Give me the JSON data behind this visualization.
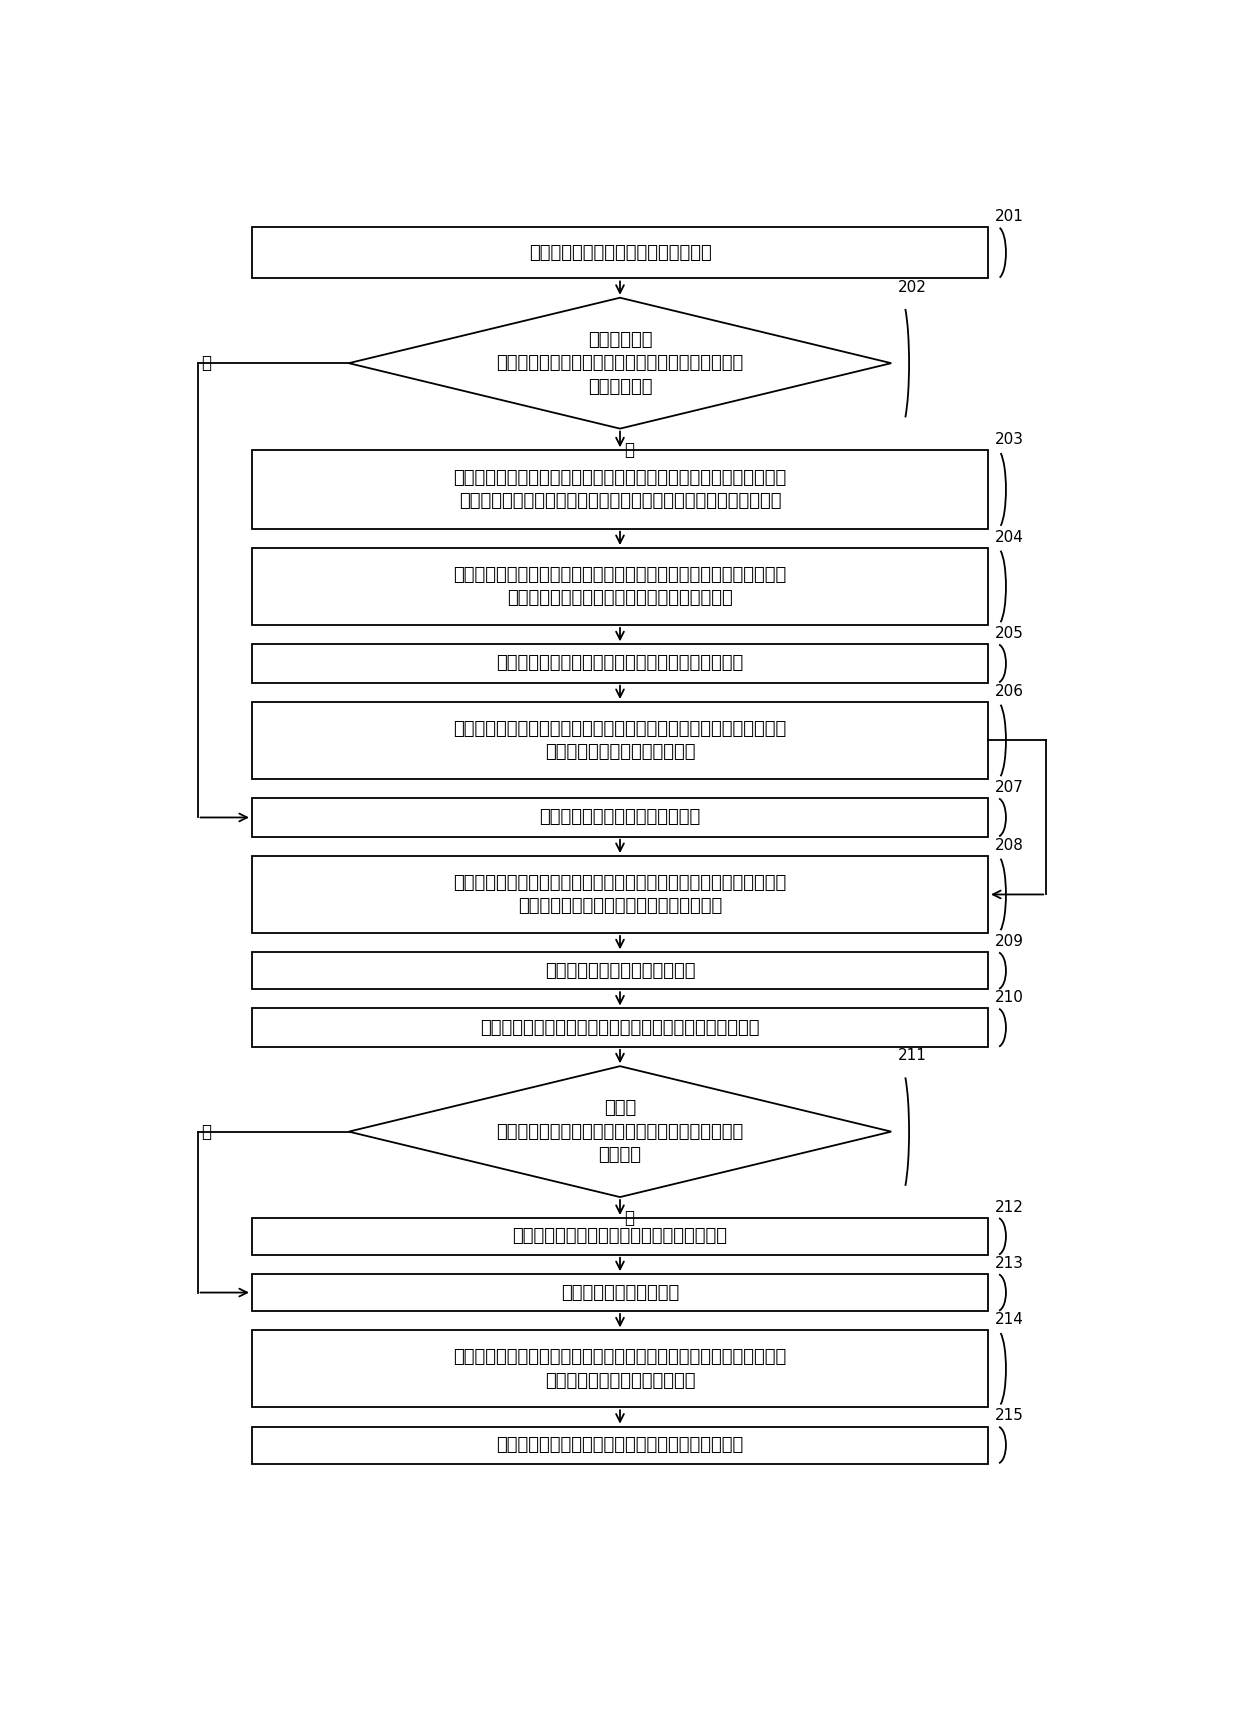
{
  "background_color": "#ffffff",
  "nodes": [
    {
      "id": "201",
      "type": "rect",
      "label": "接收至少一个设备发来的第一状态信息",
      "num": "201",
      "lines": 1
    },
    {
      "id": "202",
      "type": "diamond",
      "label": "针对每一个当\n前设备，确定缓存的数据中是否存在与当前设备相关\n联的控制命令",
      "num": "202",
      "lines": 3
    },
    {
      "id": "203",
      "type": "rect",
      "label": "根据当前设备对应的设备类型，从预先存储的至少一种解析文件中确定\n目标解析文件，其中，每一种解析文件与至少一种类型的设备相对应",
      "num": "203",
      "lines": 2
    },
    {
      "id": "204",
      "type": "rect",
      "label": "利用目标解析文件将控制命令转换为与当前设备对应的数据类型相匹配\n的控制命令，将转换后的控制命令作为控制命令",
      "num": "204",
      "lines": 2
    },
    {
      "id": "205",
      "type": "rect",
      "label": "将控制命令发送给当前设备，并删除缓存的控制命令",
      "num": "205",
      "lines": 1
    },
    {
      "id": "206",
      "type": "rect",
      "label": "当接收到当前设备按照控制命令执行操作后返回的第二状态信息时，将\n第二状态信息作为当前状态信息",
      "num": "206",
      "lines": 2
    },
    {
      "id": "207",
      "type": "rect",
      "label": "将第一状态信息作为当前状态信息",
      "num": "207",
      "lines": 1
    },
    {
      "id": "208",
      "type": "rect",
      "label": "利用目标解析文件将当前状态信息转换为预设格式的当前状态信息，并\n将转换后的当前状态信息作为当前状态信息",
      "num": "208",
      "lines": 2
    },
    {
      "id": "209",
      "type": "rect",
      "label": "确定当前状态信息对应的时间戳",
      "num": "209",
      "lines": 1
    },
    {
      "id": "210",
      "type": "rect",
      "label": "根据当前状态信息和时间戳，生成当前设备的设备状态信息",
      "num": "210",
      "lines": 1
    },
    {
      "id": "211",
      "type": "diamond",
      "label": "确定缓\n存的数据中是否存在最近一次存储的当前设备的设备\n状态信息",
      "num": "211",
      "lines": 3
    },
    {
      "id": "212",
      "type": "rect",
      "label": "删除最近一次存储的当前设备的设备状态信息",
      "num": "212",
      "lines": 1
    },
    {
      "id": "213",
      "type": "rect",
      "label": "对设备状态信息进行缓存",
      "num": "213",
      "lines": 1
    },
    {
      "id": "214",
      "type": "rect",
      "label": "根据预先存储的至少一个客户端与至少一个设备的关联关系，确定当前\n设备对应的至少一个目标客户端",
      "num": "214",
      "lines": 2
    },
    {
      "id": "215",
      "type": "rect",
      "label": "将当前设备的设备状态信息发送给每一个目标客户端",
      "num": "215",
      "lines": 1
    }
  ]
}
